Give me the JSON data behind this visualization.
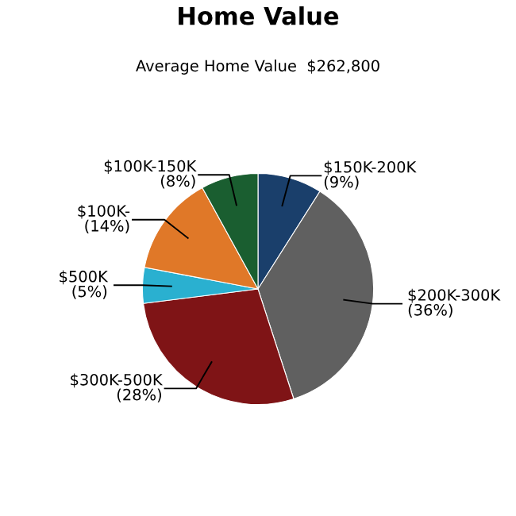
{
  "chart_data": {
    "type": "pie",
    "title": "Home Value",
    "subtitle": "Average Home Value  $262,800",
    "categories": [
      "$150K-200K",
      "$200K-300K",
      "$300K-500K",
      "$500K",
      "$100K-",
      "$100K-150K"
    ],
    "values": [
      9,
      36,
      28,
      5,
      14,
      8
    ],
    "value_labels": [
      "(9%)",
      "(36%)",
      "(28%)",
      "(5%)",
      "(14%)",
      "(8%)"
    ],
    "colors": [
      "#1a3f6b",
      "#606060",
      "#7f1416",
      "#2ab0d0",
      "#e07828",
      "#1a5e30"
    ]
  }
}
